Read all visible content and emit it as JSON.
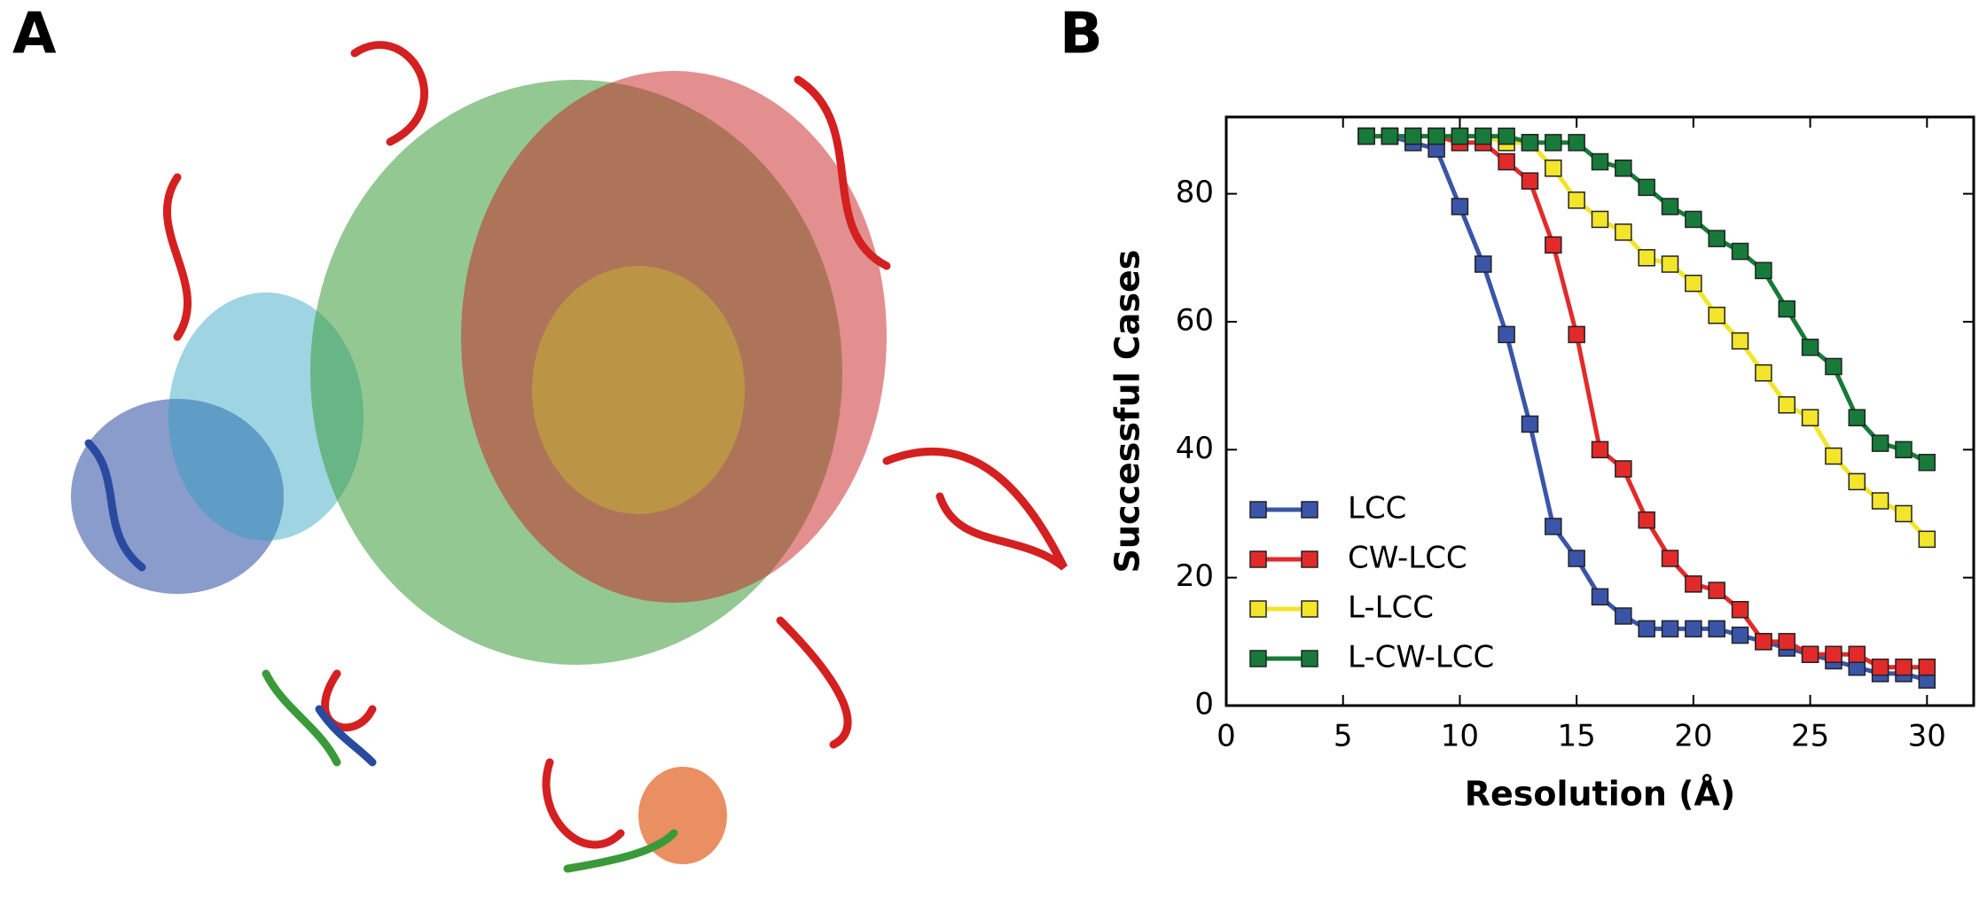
{
  "panels": [
    "A",
    "B"
  ],
  "chart_data": {
    "type": "line",
    "x_label": "Resolution (Å)",
    "y_label": "Successful Cases",
    "xlim": [
      0,
      32
    ],
    "ylim": [
      0,
      92
    ],
    "xticks": [
      0,
      5,
      10,
      15,
      20,
      25,
      30
    ],
    "yticks": [
      0,
      20,
      40,
      60,
      80
    ],
    "legend": "lower left",
    "x": [
      6,
      7,
      8,
      9,
      10,
      11,
      12,
      13,
      14,
      15,
      16,
      17,
      18,
      19,
      20,
      21,
      22,
      23,
      24,
      25,
      26,
      27,
      28,
      29,
      30
    ],
    "series": [
      {
        "name": "LCC",
        "color": "#3a55a8",
        "values": [
          89,
          89,
          88,
          87,
          78,
          69,
          58,
          44,
          28,
          23,
          17,
          14,
          12,
          12,
          12,
          12,
          11,
          10,
          9,
          8,
          7,
          6,
          5,
          5,
          4
        ]
      },
      {
        "name": "CW-LCC",
        "color": "#e32a2a",
        "values": [
          89,
          89,
          89,
          89,
          88,
          88,
          85,
          82,
          72,
          58,
          40,
          37,
          29,
          23,
          19,
          18,
          15,
          10,
          10,
          8,
          8,
          8,
          6,
          6,
          6
        ]
      },
      {
        "name": "L-LCC",
        "color": "#f2e52a",
        "values": [
          89,
          89,
          89,
          89,
          89,
          89,
          88,
          88,
          84,
          79,
          76,
          74,
          70,
          69,
          66,
          61,
          57,
          52,
          47,
          45,
          39,
          35,
          32,
          30,
          26
        ]
      },
      {
        "name": "L-CW-LCC",
        "color": "#177a3a",
        "values": [
          89,
          89,
          89,
          89,
          89,
          89,
          89,
          88,
          88,
          88,
          85,
          84,
          81,
          78,
          76,
          73,
          71,
          68,
          62,
          56,
          53,
          45,
          41,
          40,
          38
        ]
      }
    ]
  }
}
